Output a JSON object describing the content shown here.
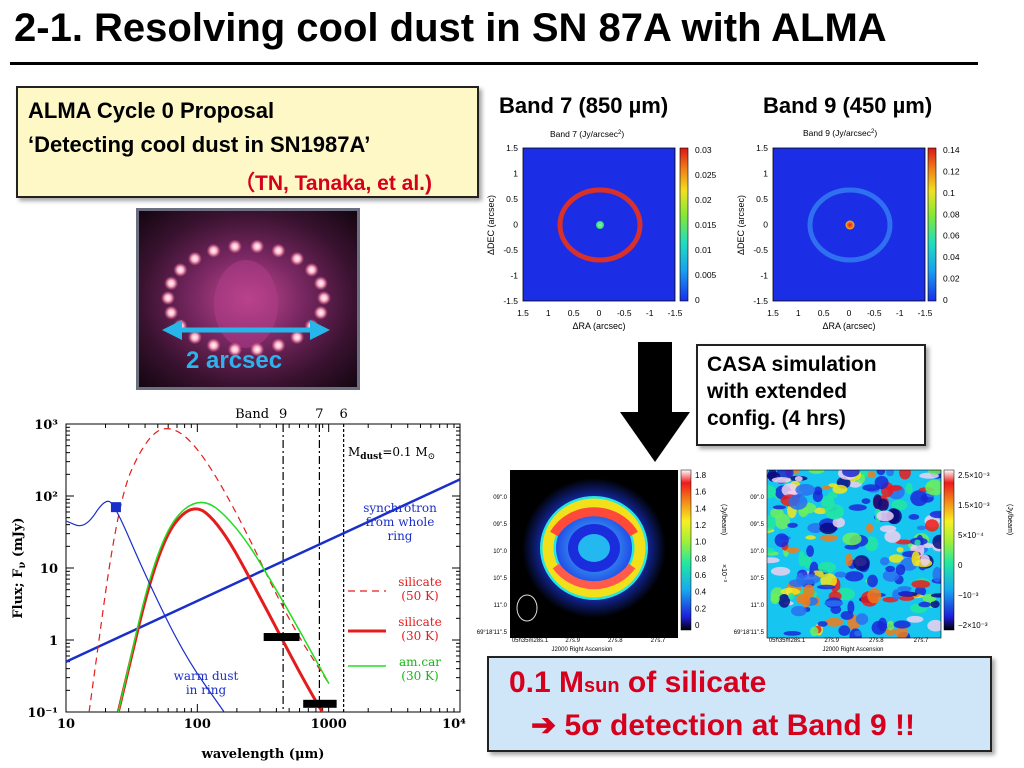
{
  "slide": {
    "title": "2-1. Resolving cool dust in SN 87A with ALMA"
  },
  "proposal": {
    "line1": "ALMA Cycle 0 Proposal",
    "line2": "‘Detecting cool dust in SN1987A’",
    "authors": "（TN, Tanaka, et al.)"
  },
  "image_label": "2 arcsec",
  "band_titles": {
    "band7": "Band 7 (850 µm)",
    "band9": "Band 9 (450 µm)"
  },
  "panel_band7": {
    "title": "Band 7 (Jy/arcsec",
    "title_sup": "2",
    "title_end": ")",
    "xlabel": "ΔRA (arcsec)",
    "ylabel": "ΔDEC (arcsec)",
    "xticks": [
      "1.5",
      "1",
      "0.5",
      "0",
      "-0.5",
      "-1",
      "-1.5"
    ],
    "yticks": [
      "1.5",
      "1",
      "0.5",
      "0",
      "-0.5",
      "-1",
      "-1.5"
    ],
    "cbar_ticks": [
      "0.03",
      "0.025",
      "0.02",
      "0.015",
      "0.01",
      "0.005",
      "0"
    ]
  },
  "panel_band9": {
    "title": "Band 9 (Jy/arcsec",
    "title_sup": "2",
    "title_end": ")",
    "xlabel": "ΔRA (arcsec)",
    "ylabel": "ΔDEC (arcsec)",
    "xticks": [
      "1.5",
      "1",
      "0.5",
      "0",
      "-0.5",
      "-1",
      "-1.5"
    ],
    "yticks": [
      "1.5",
      "1",
      "0.5",
      "0",
      "-0.5",
      "-1",
      "-1.5"
    ],
    "cbar_ticks": [
      "0.14",
      "0.12",
      "0.1",
      "0.08",
      "0.06",
      "0.04",
      "0.02",
      "0"
    ]
  },
  "casa": {
    "line1": "CASA simulation",
    "line2": "with extended",
    "line3": "config. (4 hrs)"
  },
  "sim_left": {
    "yticks": [
      "09\".0",
      "09\".5",
      "10\".0",
      "10\".5",
      "11\".0",
      "69°18'11\".5"
    ],
    "xticks": [
      "05h35m28s.1",
      "27s.9",
      "27s.8",
      "27s.7"
    ],
    "xlabel": "J2000 Right Ascension",
    "cbar_ticks": [
      "1.8",
      "1.6",
      "1.4",
      "1.2",
      "1.0",
      "0.8",
      "0.6",
      "0.4",
      "0.2",
      "0"
    ],
    "cbar_label": "(Jy/beam)",
    "cbar_exp": "×10⁻³"
  },
  "sim_right": {
    "yticks": [
      "09\".0",
      "09\".5",
      "10\".0",
      "10\".5",
      "11\".0",
      "69°18'11\".5"
    ],
    "xticks": [
      "05h35m28s.1",
      "27s.9",
      "27s.8",
      "27s.7"
    ],
    "xlabel": "J2000 Right Ascension",
    "cbar_ticks": [
      "2.5×10⁻³",
      "1.5×10⁻³",
      "5×10⁻⁴",
      "0",
      "−10⁻³",
      "−2×10⁻³"
    ],
    "cbar_label": "(Jy/beam)"
  },
  "sed": {
    "band_label": "Band",
    "band_numbers": [
      "9",
      "7",
      "6"
    ],
    "mass_label": "M",
    "mass_sub": "dust",
    "mass_value": "=0.1 M",
    "mass_sun": "⊙",
    "ylabel": "Flux; F",
    "ylabel_sub": "ν",
    "ylabel_unit": " (mJy)",
    "xlabel": "wavelength (μm)",
    "xticks": [
      "10",
      "100",
      "1000",
      "10⁴"
    ],
    "yticks": [
      "10³",
      "10²",
      "10",
      "1",
      "10⁻¹"
    ],
    "legend_sync": [
      "synchrotron",
      "from whole",
      "ring"
    ],
    "legend_sil50": [
      "silicate",
      "(50 K)"
    ],
    "legend_sil30": [
      "silicate",
      "(30 K)"
    ],
    "legend_amcar": [
      "am.car",
      "(30 K)"
    ],
    "legend_warm": [
      "warm dust",
      "in ring"
    ]
  },
  "result": {
    "line1_pre": "0.1 M",
    "line1_sub": "sun",
    "line1_post": " of silicate",
    "line2": "➔ 5σ detection at Band 9 !!"
  },
  "colors": {
    "title_text": "#000000",
    "proposal_bg": "#fdf8c6",
    "accent_red": "#d6001c",
    "result_bg": "#cfe6f9",
    "arrow_cyan": "#27b6ea",
    "label_cyan": "#2db3ea",
    "sed_blue": "#1a2fc9",
    "sed_red": "#e51c1c",
    "sed_green": "#22dd22"
  },
  "chart_data": {
    "type": "line",
    "title": "",
    "xlabel": "wavelength (μm)",
    "ylabel": "Flux; Fν (mJy)",
    "xscale": "log",
    "yscale": "log",
    "xlim": [
      10,
      10000
    ],
    "ylim": [
      0.1,
      1000
    ],
    "series": [
      {
        "name": "synchrotron from whole ring",
        "x": [
          10,
          10000
        ],
        "y": [
          0.5,
          170
        ]
      },
      {
        "name": "silicate (50 K)",
        "x": [
          15,
          25,
          40,
          60,
          100,
          200,
          500,
          1000
        ],
        "y": [
          0.1,
          90,
          600,
          1000,
          500,
          60,
          1.8,
          0.25
        ]
      },
      {
        "name": "silicate (30 K)",
        "x": [
          25,
          50,
          90,
          150,
          300,
          600,
          1000
        ],
        "y": [
          0.1,
          20,
          85,
          40,
          4,
          0.35,
          0.07
        ]
      },
      {
        "name": "am.car (30 K)",
        "x": [
          25,
          50,
          100,
          200,
          450,
          1000
        ],
        "y": [
          0.1,
          25,
          110,
          40,
          3.5,
          0.25
        ]
      },
      {
        "name": "warm dust in ring",
        "x": [
          10,
          14,
          20,
          24,
          40,
          80,
          160
        ],
        "y": [
          45,
          35,
          95,
          70,
          8,
          0.6,
          0.1
        ]
      }
    ],
    "bands": [
      {
        "name": "9",
        "x": 450
      },
      {
        "name": "7",
        "x": 850
      },
      {
        "name": "6",
        "x": 1300
      }
    ]
  }
}
